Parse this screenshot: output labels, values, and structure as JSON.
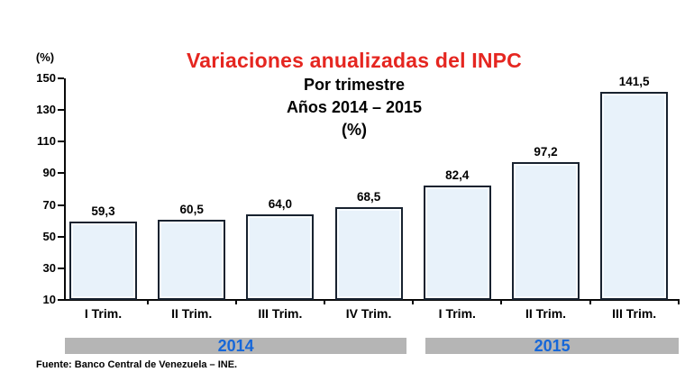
{
  "chart_data": {
    "type": "bar",
    "title": "Variaciones anualizadas del INPC",
    "subtitles": [
      "Por trimestre",
      "Años 2014 – 2015",
      "(%)"
    ],
    "y_axis_unit": "(%)",
    "categories": [
      "I Trim.",
      "II Trim.",
      "III Trim.",
      "IV Trim.",
      "I Trim.",
      "II Trim.",
      "III Trim."
    ],
    "values": [
      59.3,
      60.5,
      64.0,
      68.5,
      82.4,
      97.2,
      141.5
    ],
    "value_labels": [
      "59,3",
      "60,5",
      "64,0",
      "68,5",
      "82,4",
      "97,2",
      "141,5"
    ],
    "y_ticks": [
      150,
      130,
      110,
      90,
      70,
      50,
      30,
      10
    ],
    "ylim": [
      10,
      150
    ],
    "grid": false,
    "legend": "none",
    "year_groups": [
      {
        "label": "2014",
        "span": 4
      },
      {
        "label": "2015",
        "span": 3
      }
    ],
    "colors": {
      "title": "#e52620",
      "bar_fill": "#e8f2fa",
      "bar_border": "#18222f",
      "year_label": "#1667d9",
      "year_band": "#b5b5b5",
      "axis": "#0a0a0a"
    }
  },
  "footer": {
    "source": "Fuente: Banco Central de Venezuela – INE."
  }
}
